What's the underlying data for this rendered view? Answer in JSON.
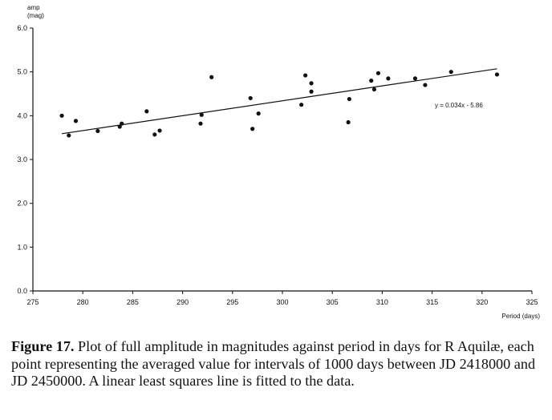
{
  "chart_data": {
    "type": "scatter",
    "title": "",
    "ylabel_line1": "amp",
    "ylabel_line2": "(mag)",
    "xlabel": "Period (days)",
    "xlim": [
      275,
      325
    ],
    "ylim": [
      0,
      6
    ],
    "x_ticks": [
      275,
      280,
      285,
      290,
      295,
      300,
      305,
      310,
      315,
      320,
      325
    ],
    "y_ticks": [
      0,
      1,
      2,
      3,
      4,
      5,
      6
    ],
    "x_tick_labels": [
      "275",
      "280",
      "285",
      "290",
      "295",
      "300",
      "305",
      "310",
      "315",
      "320",
      "325"
    ],
    "y_tick_labels": [
      "0.0",
      "1.0",
      "2.0",
      "3.0",
      "4.0",
      "5.0",
      "6.0"
    ],
    "grid": false,
    "series": [
      {
        "points": [
          [
            277.9,
            4.0
          ],
          [
            278.6,
            3.55
          ],
          [
            279.3,
            3.88
          ],
          [
            281.5,
            3.65
          ],
          [
            283.7,
            3.75
          ],
          [
            283.9,
            3.82
          ],
          [
            286.4,
            4.1
          ],
          [
            287.2,
            3.57
          ],
          [
            287.7,
            3.66
          ],
          [
            291.8,
            3.82
          ],
          [
            291.9,
            4.02
          ],
          [
            292.9,
            4.88
          ],
          [
            296.8,
            4.4
          ],
          [
            297.0,
            3.7
          ],
          [
            297.6,
            4.05
          ],
          [
            301.9,
            4.25
          ],
          [
            302.3,
            4.92
          ],
          [
            302.9,
            4.55
          ],
          [
            302.9,
            4.74
          ],
          [
            306.6,
            3.85
          ],
          [
            306.7,
            4.38
          ],
          [
            308.9,
            4.8
          ],
          [
            309.2,
            4.6
          ],
          [
            309.6,
            4.97
          ],
          [
            310.6,
            4.85
          ],
          [
            313.3,
            4.85
          ],
          [
            314.3,
            4.7
          ],
          [
            316.9,
            5.0
          ],
          [
            321.5,
            4.94
          ]
        ]
      }
    ],
    "fit_line": {
      "x_range": [
        277.9,
        321.5
      ],
      "slope": 0.034,
      "intercept": -5.86,
      "label": "y = 0.034x - 5.86"
    }
  },
  "caption": {
    "label": "Figure 17.",
    "text": " Plot of full amplitude in magnitudes against period in days for R Aquilæ, each point representing the averaged value for intervals of 1000 days between JD 2418000 and JD 2450000. A linear least squares line is fitted to the data."
  }
}
